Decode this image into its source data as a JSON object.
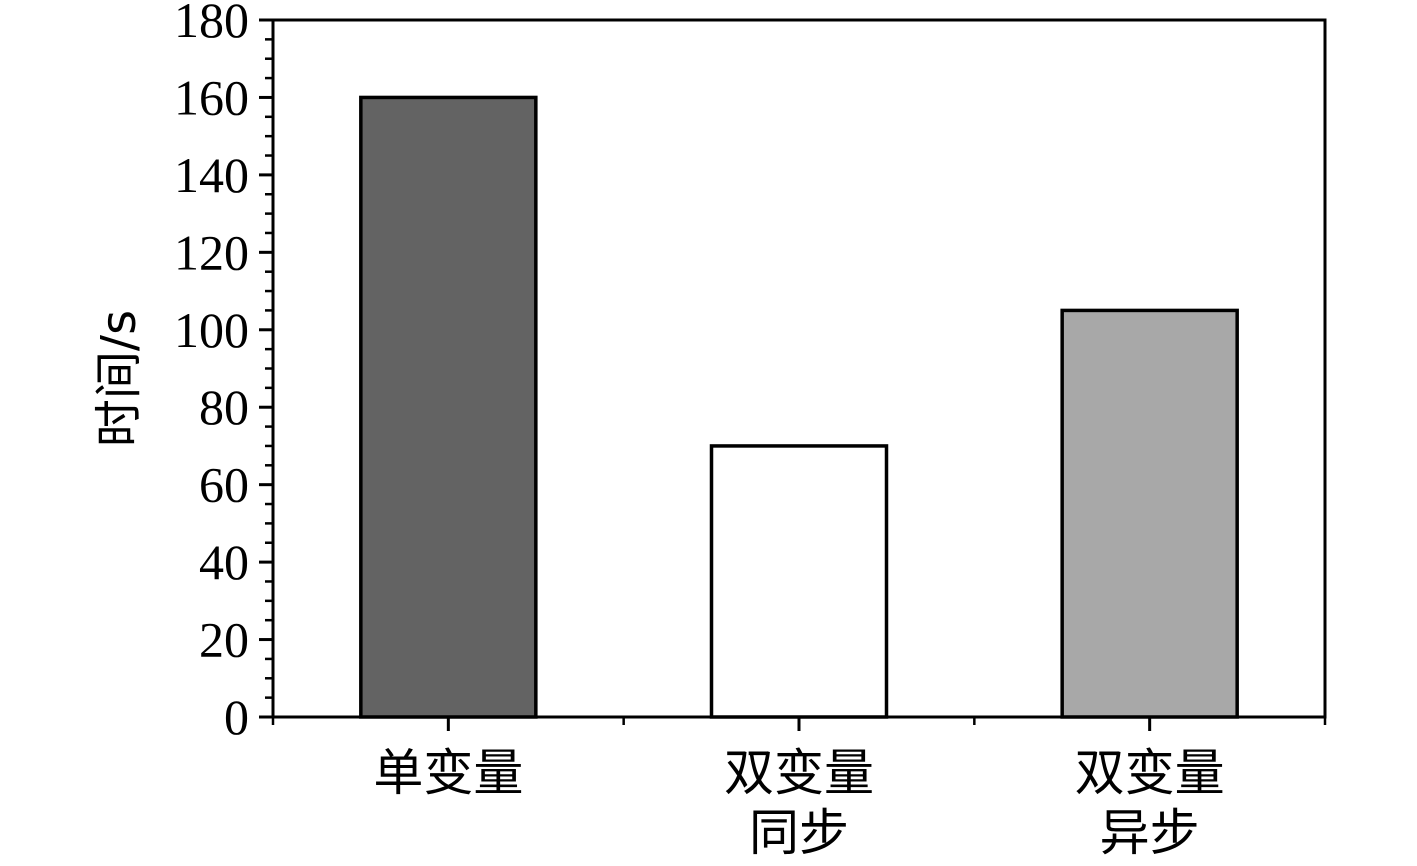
{
  "chart_data": {
    "type": "bar",
    "categories": [
      [
        "单变量"
      ],
      [
        "双变量",
        "同步"
      ],
      [
        "双变量",
        "异步"
      ]
    ],
    "values": [
      160,
      70,
      105
    ],
    "bar_colors": [
      "#636363",
      "#ffffff",
      "#a8a8a8"
    ],
    "ylabel": "时间/s",
    "ylim": [
      0,
      180
    ],
    "y_major_ticks": [
      0,
      20,
      40,
      60,
      80,
      100,
      120,
      140,
      160,
      180
    ],
    "y_minor_step": 5,
    "grid": false,
    "legend": "none"
  }
}
